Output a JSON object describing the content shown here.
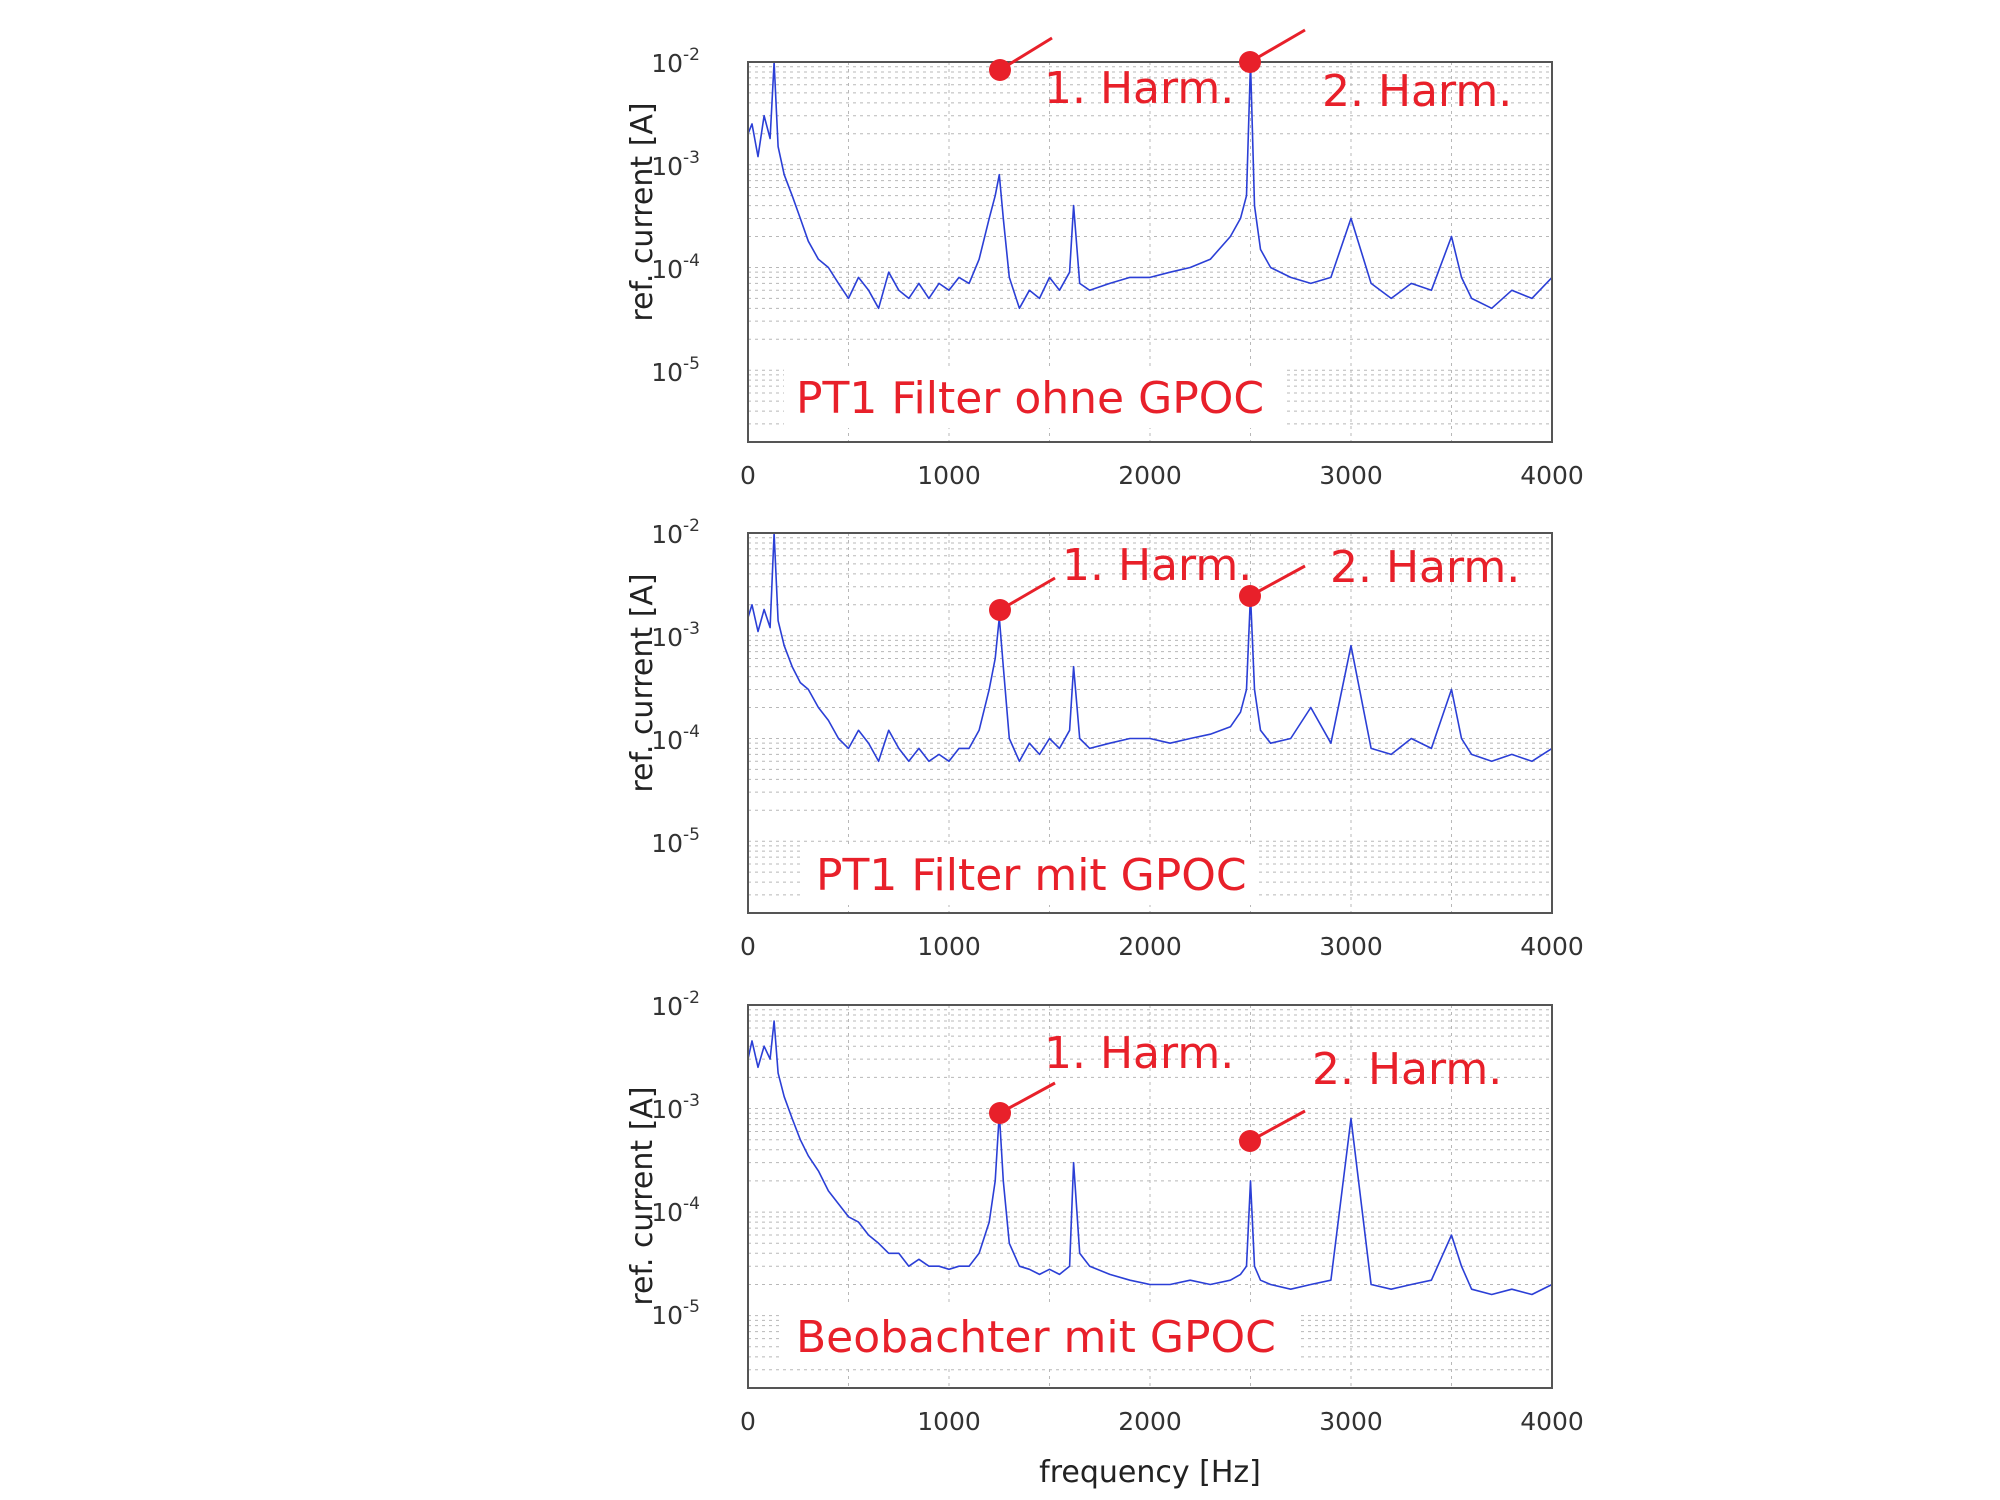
{
  "chart_data": [
    {
      "type": "line",
      "xlabel": "",
      "ylabel": "ref. current [A]",
      "xlim": [
        0,
        4000
      ],
      "ylim": [
        2e-06,
        0.01
      ],
      "y_scale": "log",
      "grid": true,
      "x_ticks": [
        "0",
        "1000",
        "2000",
        "3000",
        "4000"
      ],
      "y_ticks": [
        {
          "base": "10",
          "exp": "-2"
        },
        {
          "base": "10",
          "exp": "-3"
        },
        {
          "base": "10",
          "exp": "-4"
        },
        {
          "base": "10",
          "exp": "-5"
        }
      ],
      "series": [
        {
          "x": [
            0,
            20,
            50,
            80,
            110,
            130,
            150,
            180,
            220,
            260,
            300,
            350,
            400,
            450,
            500,
            550,
            600,
            650,
            700,
            750,
            800,
            850,
            900,
            950,
            1000,
            1050,
            1100,
            1150,
            1200,
            1230,
            1250,
            1270,
            1300,
            1350,
            1400,
            1450,
            1500,
            1550,
            1600,
            1620,
            1650,
            1700,
            1800,
            1900,
            2000,
            2100,
            2200,
            2300,
            2400,
            2450,
            2480,
            2500,
            2520,
            2550,
            2600,
            2700,
            2800,
            2900,
            3000,
            3100,
            3200,
            3300,
            3400,
            3500,
            3550,
            3600,
            3700,
            3800,
            3900,
            4000
          ],
          "y": [
            0.002,
            0.0025,
            0.0012,
            0.003,
            0.0018,
            0.01,
            0.0015,
            0.0008,
            0.0005,
            0.0003,
            0.00018,
            0.00012,
            0.0001,
            7e-05,
            5e-05,
            8e-05,
            6e-05,
            4e-05,
            9e-05,
            6e-05,
            5e-05,
            7e-05,
            5e-05,
            7e-05,
            6e-05,
            8e-05,
            7e-05,
            0.00012,
            0.0003,
            0.0005,
            0.0008,
            0.0003,
            8e-05,
            4e-05,
            6e-05,
            5e-05,
            8e-05,
            6e-05,
            9e-05,
            0.0004,
            7e-05,
            6e-05,
            7e-05,
            8e-05,
            8e-05,
            9e-05,
            0.0001,
            0.00012,
            0.0002,
            0.0003,
            0.0005,
            0.01,
            0.0004,
            0.00015,
            0.0001,
            8e-05,
            7e-05,
            8e-05,
            0.0003,
            7e-05,
            5e-05,
            7e-05,
            6e-05,
            0.0002,
            8e-05,
            5e-05,
            4e-05,
            6e-05,
            5e-05,
            8e-05
          ]
        }
      ],
      "annotations": [
        {
          "text": "1. Harm.",
          "x": 1250,
          "y": 0.008
        },
        {
          "text": "2. Harm.",
          "x": 2500,
          "y": 0.01
        },
        {
          "text": "PT1 Filter ohne GPOC"
        }
      ]
    },
    {
      "type": "line",
      "xlabel": "",
      "ylabel": "ref. current [A]",
      "xlim": [
        0,
        4000
      ],
      "ylim": [
        2e-06,
        0.01
      ],
      "y_scale": "log",
      "grid": true,
      "x_ticks": [
        "0",
        "1000",
        "2000",
        "3000",
        "4000"
      ],
      "y_ticks": [
        {
          "base": "10",
          "exp": "-2"
        },
        {
          "base": "10",
          "exp": "-3"
        },
        {
          "base": "10",
          "exp": "-4"
        },
        {
          "base": "10",
          "exp": "-5"
        }
      ],
      "series": [
        {
          "x": [
            0,
            20,
            50,
            80,
            110,
            130,
            150,
            180,
            220,
            260,
            300,
            350,
            400,
            450,
            500,
            550,
            600,
            650,
            700,
            750,
            800,
            850,
            900,
            950,
            1000,
            1050,
            1100,
            1150,
            1200,
            1230,
            1250,
            1270,
            1300,
            1350,
            1400,
            1450,
            1500,
            1550,
            1600,
            1620,
            1650,
            1700,
            1800,
            1900,
            2000,
            2100,
            2200,
            2300,
            2400,
            2450,
            2480,
            2500,
            2520,
            2550,
            2600,
            2700,
            2800,
            2900,
            3000,
            3100,
            3200,
            3300,
            3400,
            3500,
            3550,
            3600,
            3700,
            3800,
            3900,
            4000
          ],
          "y": [
            0.0015,
            0.002,
            0.0011,
            0.0018,
            0.0012,
            0.01,
            0.0014,
            0.0008,
            0.0005,
            0.00035,
            0.0003,
            0.0002,
            0.00015,
            0.0001,
            8e-05,
            0.00012,
            9e-05,
            6e-05,
            0.00012,
            8e-05,
            6e-05,
            8e-05,
            6e-05,
            7e-05,
            6e-05,
            8e-05,
            8e-05,
            0.00012,
            0.0003,
            0.0006,
            0.0015,
            0.0005,
            0.0001,
            6e-05,
            9e-05,
            7e-05,
            0.0001,
            8e-05,
            0.00012,
            0.0005,
            0.0001,
            8e-05,
            9e-05,
            0.0001,
            0.0001,
            9e-05,
            0.0001,
            0.00011,
            0.00013,
            0.00018,
            0.0003,
            0.0025,
            0.0003,
            0.00012,
            9e-05,
            0.0001,
            0.0002,
            9e-05,
            0.0008,
            8e-05,
            7e-05,
            0.0001,
            8e-05,
            0.0003,
            0.0001,
            7e-05,
            6e-05,
            7e-05,
            6e-05,
            8e-05
          ]
        }
      ],
      "annotations": [
        {
          "text": "1. Harm.",
          "x": 1260,
          "y": 0.0016
        },
        {
          "text": "2. Harm.",
          "x": 2500,
          "y": 0.0022
        },
        {
          "text": "PT1 Filter mit GPOC"
        }
      ]
    },
    {
      "type": "line",
      "xlabel": "frequency [Hz]",
      "ylabel": "ref. current [A]",
      "xlim": [
        0,
        4000
      ],
      "ylim": [
        2e-06,
        0.01
      ],
      "y_scale": "log",
      "grid": true,
      "x_ticks": [
        "0",
        "1000",
        "2000",
        "3000",
        "4000"
      ],
      "y_ticks": [
        {
          "base": "10",
          "exp": "-2"
        },
        {
          "base": "10",
          "exp": "-3"
        },
        {
          "base": "10",
          "exp": "-4"
        },
        {
          "base": "10",
          "exp": "-5"
        }
      ],
      "series": [
        {
          "x": [
            0,
            20,
            50,
            80,
            110,
            130,
            150,
            180,
            220,
            260,
            300,
            350,
            400,
            450,
            500,
            550,
            600,
            650,
            700,
            750,
            800,
            850,
            900,
            950,
            1000,
            1050,
            1100,
            1150,
            1200,
            1230,
            1250,
            1270,
            1300,
            1350,
            1400,
            1450,
            1500,
            1550,
            1600,
            1620,
            1650,
            1700,
            1800,
            1900,
            2000,
            2100,
            2200,
            2300,
            2400,
            2450,
            2480,
            2500,
            2520,
            2550,
            2600,
            2700,
            2800,
            2900,
            3000,
            3100,
            3200,
            3300,
            3400,
            3500,
            3550,
            3600,
            3700,
            3800,
            3900,
            4000
          ],
          "y": [
            0.003,
            0.0045,
            0.0025,
            0.004,
            0.003,
            0.007,
            0.0022,
            0.0013,
            0.0008,
            0.0005,
            0.00035,
            0.00025,
            0.00016,
            0.00012,
            9e-05,
            8e-05,
            6e-05,
            5e-05,
            4e-05,
            4e-05,
            3e-05,
            3.5e-05,
            3e-05,
            3e-05,
            2.8e-05,
            3e-05,
            3e-05,
            4e-05,
            8e-05,
            0.0002,
            0.0009,
            0.0002,
            5e-05,
            3e-05,
            2.8e-05,
            2.5e-05,
            2.8e-05,
            2.5e-05,
            3e-05,
            0.0003,
            4e-05,
            3e-05,
            2.5e-05,
            2.2e-05,
            2e-05,
            2e-05,
            2.2e-05,
            2e-05,
            2.2e-05,
            2.5e-05,
            3e-05,
            0.0002,
            3e-05,
            2.2e-05,
            2e-05,
            1.8e-05,
            2e-05,
            2.2e-05,
            0.0008,
            2e-05,
            1.8e-05,
            2e-05,
            2.2e-05,
            6e-05,
            3e-05,
            1.8e-05,
            1.6e-05,
            1.8e-05,
            1.6e-05,
            2e-05
          ]
        }
      ],
      "annotations": [
        {
          "text": "1. Harm.",
          "x": 1250,
          "y": 0.0008
        },
        {
          "text": "2. Harm.",
          "x": 2500,
          "y": 0.00045
        },
        {
          "text": "Beobachter mit GPOC"
        }
      ]
    }
  ]
}
